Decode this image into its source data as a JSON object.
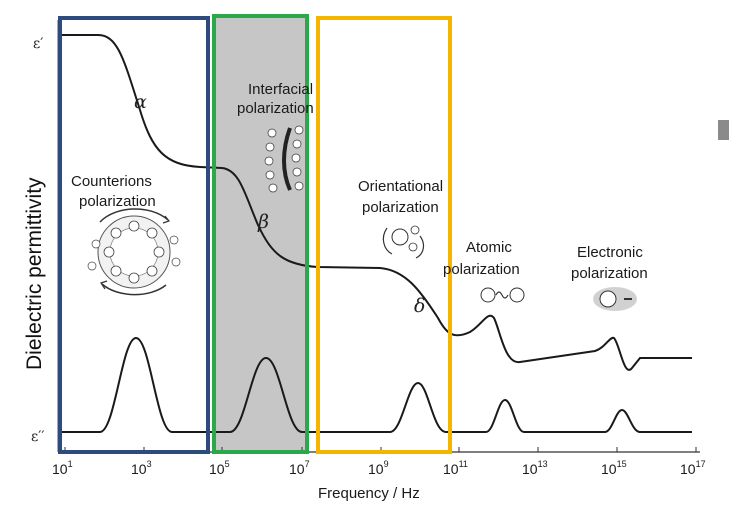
{
  "y_axis_label": "Dielectric permittivity",
  "x_axis_label": "Frequency / Hz",
  "eps_real_label": "ε′",
  "eps_imag_label": "ε′′",
  "x_ticks": [
    {
      "base": "10",
      "exp": "1"
    },
    {
      "base": "10",
      "exp": "3"
    },
    {
      "base": "10",
      "exp": "5"
    },
    {
      "base": "10",
      "exp": "7"
    },
    {
      "base": "10",
      "exp": "9"
    },
    {
      "base": "10",
      "exp": "11"
    },
    {
      "base": "10",
      "exp": "13"
    },
    {
      "base": "10",
      "exp": "15"
    },
    {
      "base": "10",
      "exp": "17"
    }
  ],
  "mechanisms": {
    "counterions": {
      "line1": "Counterions",
      "line2": "polarization",
      "greek": "α"
    },
    "interfacial": {
      "line1": "Interfacial",
      "line2": "polarization",
      "greek": "β"
    },
    "orientational": {
      "line1": "Orientational",
      "line2": "polarization",
      "greek": "δ"
    },
    "atomic": {
      "line1": "Atomic",
      "line2": "polarization"
    },
    "electronic": {
      "line1": "Electronic",
      "line2": "polarization"
    }
  },
  "colors": {
    "box_blue": "#2e4b7e",
    "box_green": "#2aa84a",
    "box_yellow": "#f5b400",
    "shade": "#c6c6c6",
    "curve": "#1a1a1a"
  }
}
